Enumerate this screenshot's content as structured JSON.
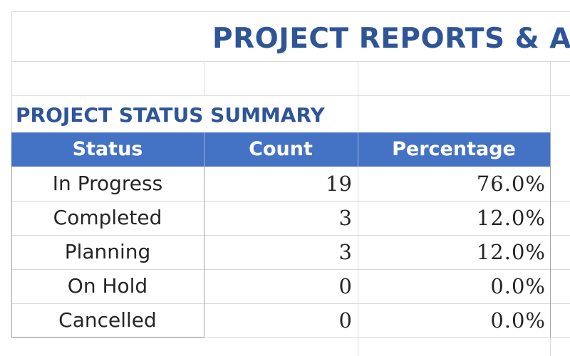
{
  "report": {
    "title": "PROJECT REPORTS & A",
    "section_title": "PROJECT STATUS SUMMARY"
  },
  "table": {
    "headers": [
      "Status",
      "Count",
      "Percentage"
    ],
    "rows": [
      {
        "status": "In Progress",
        "count": "19",
        "percentage": "76.0%"
      },
      {
        "status": "Completed",
        "count": "3",
        "percentage": "12.0%"
      },
      {
        "status": "Planning",
        "count": "3",
        "percentage": "12.0%"
      },
      {
        "status": "On Hold",
        "count": "0",
        "percentage": "0.0%"
      },
      {
        "status": "Cancelled",
        "count": "0",
        "percentage": "0.0%"
      }
    ]
  },
  "colors": {
    "title": "#2e5597",
    "header_fill": "#4472c4",
    "header_text": "#ffffff",
    "gridline": "#d9d9d9"
  }
}
